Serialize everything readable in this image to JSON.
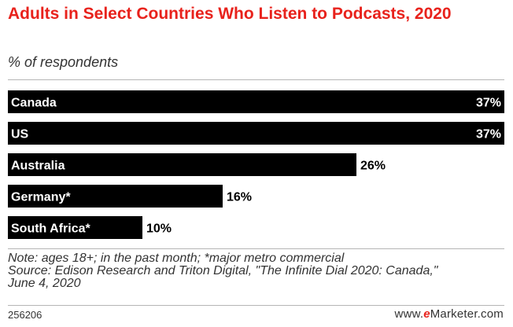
{
  "title": "Adults in Select Countries Who Listen to Podcasts, 2020",
  "subtitle": "% of respondents",
  "chart_data": {
    "type": "bar",
    "orientation": "horizontal",
    "categories": [
      "Canada",
      "US",
      "Australia",
      "Germany*",
      "South Africa*"
    ],
    "values": [
      37,
      37,
      26,
      16,
      10
    ],
    "value_labels": [
      "37%",
      "37%",
      "26%",
      "16%",
      "10%"
    ],
    "unit": "%",
    "title": "Adults in Select Countries Who Listen to Podcasts, 2020",
    "subtitle": "% of respondents",
    "xlabel": "",
    "ylabel": "",
    "xlim": [
      0,
      37
    ],
    "grid": false,
    "legend": "none",
    "bar_color": "#000000",
    "label_color": "#ffffff"
  },
  "notes": {
    "note": "Note: ages 18+; in the past month; *major metro commercial",
    "source_line1": "Source: Edison Research and Triton Digital, \"The Infinite Dial 2020: Canada,\"",
    "source_line2": "June 4, 2020"
  },
  "footer": {
    "chart_id": "256206",
    "brand_prefix": "www.",
    "brand_e": "e",
    "brand_rest": "Marketer.com"
  },
  "colors": {
    "title": "#e8221c",
    "bar": "#000000",
    "rule": "#b5b5b5"
  }
}
